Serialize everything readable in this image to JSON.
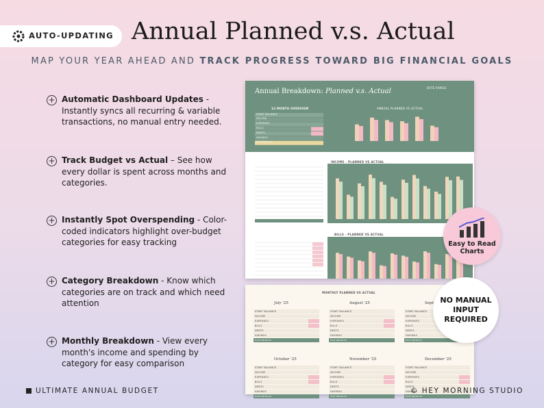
{
  "badge": "AUTO-UPDATING",
  "title": "Annual Planned v.s. Actual",
  "subtitle": {
    "normal": "MAP YOUR YEAR AHEAD AND",
    "bold": "TRACK PROGRESS TOWARD BIG FINANCIAL GOALS"
  },
  "features": [
    {
      "heading": "Automatic Dashboard Updates",
      "text": " - Instantly syncs all recurring & variable transactions, no manual entry needed."
    },
    {
      "heading": "Track Budget vs Actual",
      "text": " – See how every dollar is spent across months and categories."
    },
    {
      "heading": "Instantly Spot Overspending",
      "text": " - Color-coded indicators highlight over-budget categories for easy tracking"
    },
    {
      "heading": "Category Breakdown",
      "text": " - Know which categories are on track and which need attention"
    },
    {
      "heading": "Monthly Breakdown",
      "text": " - View every month's income and spending by category for easy comparison"
    }
  ],
  "callouts": {
    "charts": "Easy to Read Charts",
    "manual": "NO MANUAL INPUT REQUIRED"
  },
  "sheet": {
    "title_plain": "Annual Breakdown:",
    "title_italic": "Planned v.s. Actual",
    "date_range": "DATE RANGE",
    "overview": "12-MONTH OVERVIEW",
    "annual_chart": "ANNUAL PLANNED VS ACTUAL",
    "income_title": "INCOME - PLANNED VS ACTUAL",
    "bills_title": "BILLS - PLANNED VS ACTUAL",
    "monthly_title": "MONTHLY PLANNED VS ACTUAL",
    "months": [
      "July '25",
      "August '25",
      "September",
      "October '25",
      "November '25",
      "December '25"
    ],
    "rows": [
      "START BALANCE",
      "INCOME",
      "EXPENSES",
      "BILLS",
      "DEBTS",
      "SAVINGS",
      "end balance"
    ]
  },
  "footer": {
    "left": "ULTIMATE ANNUAL BUDGET",
    "right": "© HEY MORNING STUDIO"
  }
}
